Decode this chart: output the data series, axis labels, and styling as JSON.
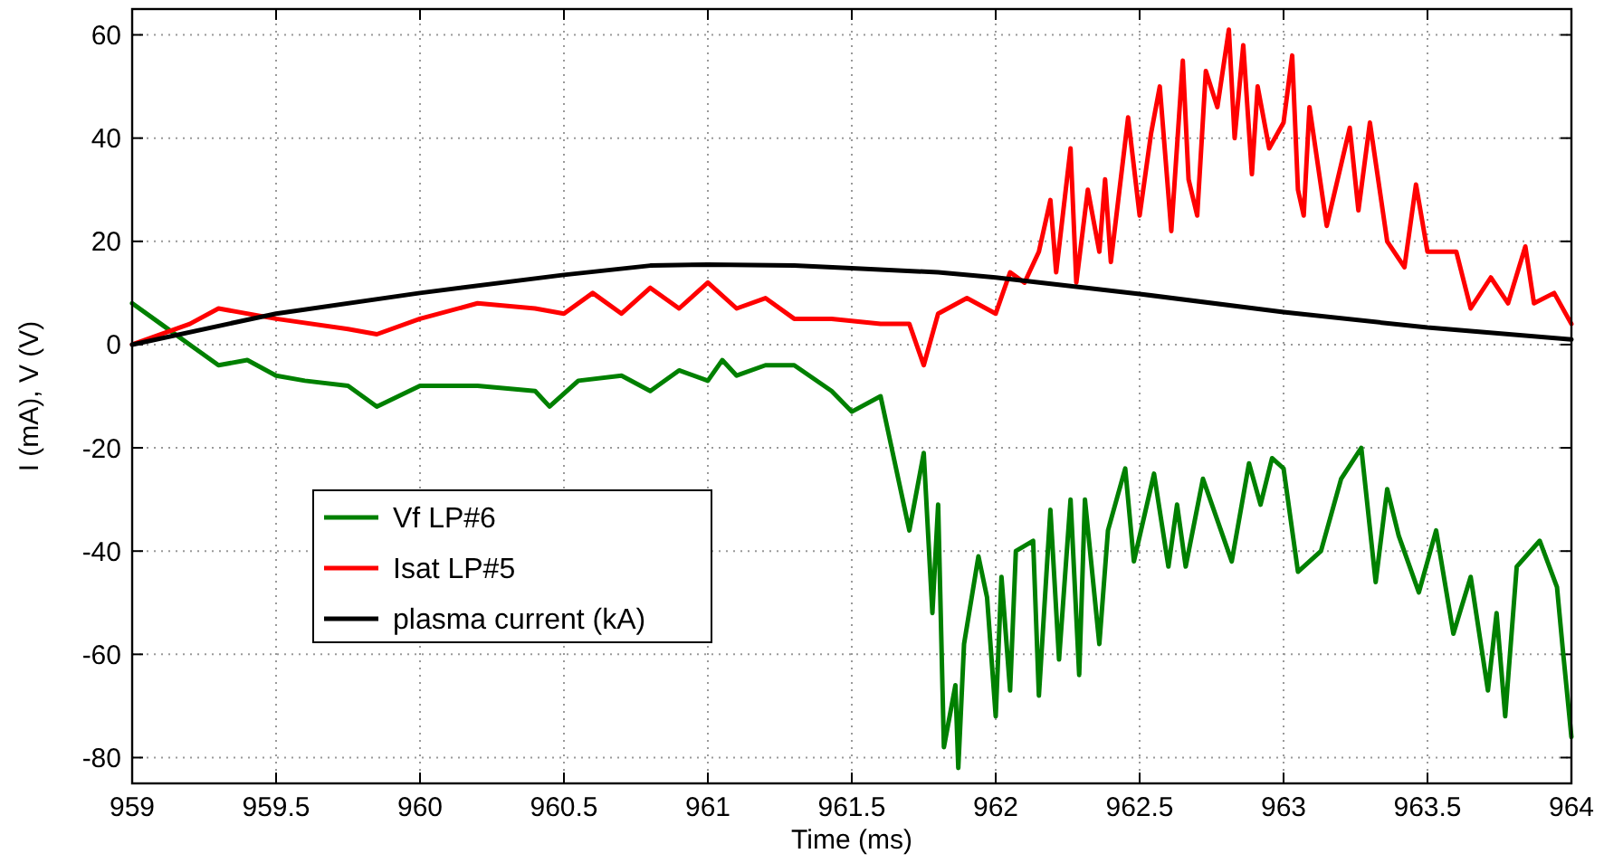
{
  "chart_data": {
    "type": "line",
    "xlabel": "Time (ms)",
    "ylabel": "I (mA), V (V)",
    "xlim": [
      959,
      964
    ],
    "xticks": [
      959,
      959.5,
      960,
      960.5,
      961,
      961.5,
      962,
      962.5,
      963,
      963.5,
      964
    ],
    "ylim": [
      -85,
      65
    ],
    "yticks": [
      -80,
      -60,
      -40,
      -20,
      0,
      20,
      40,
      60
    ],
    "grid": true,
    "legend": "bottom left",
    "line_style": "solid",
    "marker": "none",
    "series": [
      {
        "name": "Vf LP#6",
        "color": "#008000",
        "x": [
          959,
          959.1,
          959.2,
          959.3,
          959.4,
          959.5,
          959.6,
          959.75,
          959.85,
          960,
          960.2,
          960.4,
          960.45,
          960.55,
          960.7,
          960.8,
          960.9,
          961,
          961.05,
          961.1,
          961.2,
          961.3,
          961.43,
          961.5,
          961.6,
          961.7,
          961.75,
          961.78,
          961.8,
          961.82,
          961.86,
          961.87,
          961.89,
          961.94,
          961.97,
          962,
          962.02,
          962.05,
          962.07,
          962.13,
          962.15,
          962.19,
          962.22,
          962.26,
          962.29,
          962.31,
          962.36,
          962.39,
          962.45,
          962.48,
          962.55,
          962.6,
          962.63,
          962.66,
          962.72,
          962.82,
          962.88,
          962.92,
          962.96,
          963,
          963.05,
          963.13,
          963.2,
          963.27,
          963.32,
          963.36,
          963.4,
          963.47,
          963.53,
          963.59,
          963.65,
          963.71,
          963.74,
          963.77,
          963.81,
          963.89,
          963.95,
          963.97,
          964
        ],
        "values": [
          8,
          4,
          0,
          -4,
          -3,
          -6,
          -7,
          -8,
          -12,
          -8,
          -8,
          -9,
          -12,
          -7,
          -6,
          -9,
          -5,
          -7,
          -3,
          -6,
          -4,
          -4,
          -9,
          -13,
          -10,
          -36,
          -21,
          -52,
          -31,
          -78,
          -66,
          -82,
          -58,
          -41,
          -49,
          -72,
          -45,
          -67,
          -40,
          -38,
          -68,
          -32,
          -61,
          -30,
          -64,
          -30,
          -58,
          -36,
          -24,
          -42,
          -25,
          -43,
          -31,
          -43,
          -26,
          -42,
          -23,
          -31,
          -22,
          -24,
          -44,
          -40,
          -26,
          -20,
          -46,
          -28,
          -37,
          -48,
          -36,
          -56,
          -45,
          -67,
          -52,
          -72,
          -43,
          -38,
          -47,
          -59,
          -76
        ]
      },
      {
        "name": "Isat LP#5",
        "color": "#ff0000",
        "x": [
          959,
          959.2,
          959.3,
          959.5,
          959.75,
          959.85,
          960,
          960.2,
          960.4,
          960.5,
          960.6,
          960.7,
          960.8,
          960.9,
          961,
          961.1,
          961.2,
          961.3,
          961.43,
          961.6,
          961.7,
          961.75,
          961.8,
          961.9,
          962,
          962.05,
          962.1,
          962.15,
          962.19,
          962.21,
          962.26,
          962.28,
          962.32,
          962.36,
          962.38,
          962.4,
          962.46,
          962.5,
          962.54,
          962.57,
          962.61,
          962.65,
          962.67,
          962.7,
          962.73,
          962.77,
          962.81,
          962.83,
          962.86,
          962.89,
          962.91,
          962.95,
          963,
          963.03,
          963.05,
          963.07,
          963.09,
          963.15,
          963.23,
          963.26,
          963.3,
          963.36,
          963.42,
          963.46,
          963.5,
          963.6,
          963.65,
          963.72,
          963.78,
          963.84,
          963.87,
          963.94,
          964
        ],
        "values": [
          0,
          4,
          7,
          5,
          3,
          2,
          5,
          8,
          7,
          6,
          10,
          6,
          11,
          7,
          12,
          7,
          9,
          5,
          5,
          4,
          4,
          -4,
          6,
          9,
          6,
          14,
          12,
          18,
          28,
          14,
          38,
          12,
          30,
          18,
          32,
          16,
          44,
          25,
          41,
          50,
          22,
          55,
          32,
          25,
          53,
          46,
          61,
          40,
          58,
          33,
          50,
          38,
          43,
          56,
          30,
          25,
          46,
          23,
          42,
          26,
          43,
          20,
          15,
          31,
          18,
          18,
          7,
          13,
          8,
          19,
          8,
          10,
          4
        ]
      },
      {
        "name": "plasma current (kA)",
        "color": "#000000",
        "x": [
          959,
          959.5,
          960,
          960.5,
          960.8,
          961,
          961.3,
          961.5,
          961.8,
          962,
          962.5,
          963,
          963.5,
          964
        ],
        "values": [
          0,
          6,
          10,
          13.5,
          15.3,
          15.5,
          15.3,
          14.8,
          14,
          13,
          9.8,
          6.3,
          3.3,
          1
        ]
      }
    ]
  }
}
